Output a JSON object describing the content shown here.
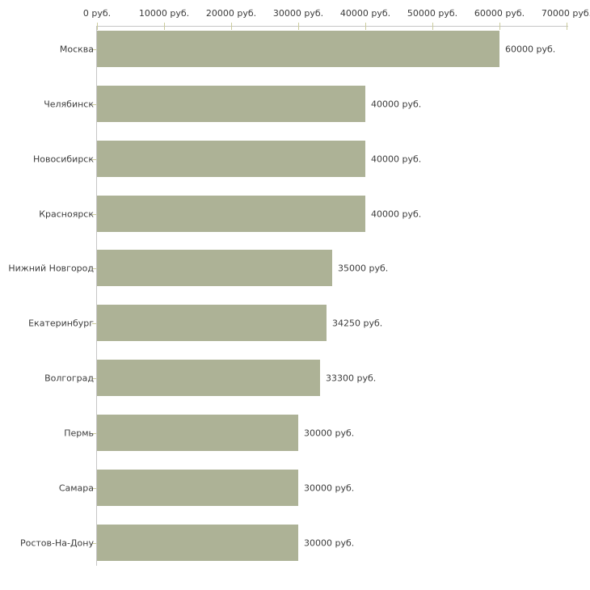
{
  "chart_data": {
    "type": "bar",
    "orientation": "horizontal",
    "title": "",
    "categories": [
      "Москва",
      "Челябинск",
      "Новосибирск",
      "Красноярск",
      "Нижний Новгород",
      "Екатеринбург",
      "Волгоград",
      "Пермь",
      "Самара",
      "Ростов-На-Дону"
    ],
    "values": [
      60000,
      40000,
      40000,
      40000,
      35000,
      34250,
      33300,
      30000,
      30000,
      30000
    ],
    "value_labels": [
      "60000 руб.",
      "40000 руб.",
      "40000 руб.",
      "40000 руб.",
      "35000 руб.",
      "34250 руб.",
      "33300 руб.",
      "30000 руб.",
      "30000 руб.",
      "30000 руб."
    ],
    "x_ticks": [
      0,
      10000,
      20000,
      30000,
      40000,
      50000,
      60000,
      70000
    ],
    "x_tick_labels": [
      "0 руб.",
      "10000 руб.",
      "20000 руб.",
      "30000 руб.",
      "40000 руб.",
      "50000 руб.",
      "60000 руб.",
      "70000 руб."
    ],
    "xlim": [
      0,
      70000
    ],
    "unit": "руб.",
    "xlabel": "",
    "ylabel": "",
    "axis_position": "top",
    "grid": false,
    "legend": false,
    "colors": {
      "bar": "#adb296",
      "axis_line": "#c6c6c6",
      "tick": "#cbcb9c",
      "text": "#3c3c3c",
      "background": "#ffffff"
    }
  }
}
